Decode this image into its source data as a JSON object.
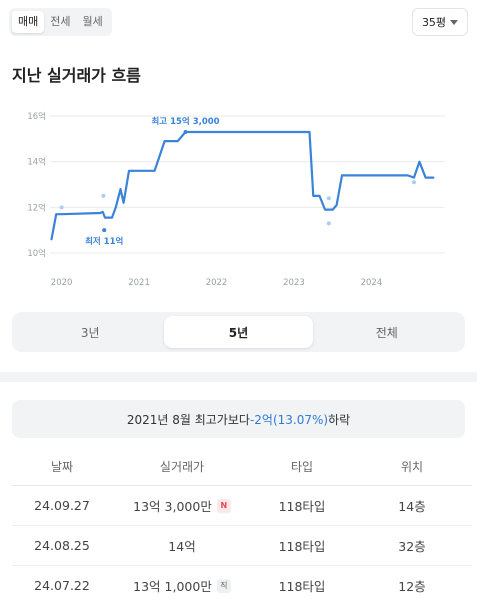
{
  "deal_tabs": [
    {
      "label": "매매",
      "active": true
    },
    {
      "label": "전세",
      "active": false
    },
    {
      "label": "월세",
      "active": false
    }
  ],
  "area_select": {
    "value": "35평",
    "icon": "caret-down-icon"
  },
  "section_title": "지난 실거래가 흐름",
  "chart_data": {
    "type": "line",
    "y_unit": "억",
    "ylim": [
      10,
      16
    ],
    "y_ticks": [
      {
        "value": 16,
        "label": "16억"
      },
      {
        "value": 14,
        "label": "14억"
      },
      {
        "value": 12,
        "label": "12억"
      },
      {
        "value": 10,
        "label": "10억"
      }
    ],
    "x_ticks": [
      {
        "value": 2020,
        "label": "2020"
      },
      {
        "value": 2021,
        "label": "2021"
      },
      {
        "value": 2022,
        "label": "2022"
      },
      {
        "value": 2023,
        "label": "2023"
      },
      {
        "value": 2024,
        "label": "2024"
      }
    ],
    "xlim": [
      2019.85,
      2024.95
    ],
    "grid": true,
    "line_color": "#3b82d9",
    "scatter_color": "#a9cdf4",
    "series": [
      {
        "x": [
          2019.87,
          2019.93,
          2020.0,
          2020.5,
          2020.53,
          2020.56,
          2020.65,
          2020.7,
          2020.76,
          2020.8,
          2020.87,
          2021.0,
          2021.2,
          2021.33,
          2021.5,
          2021.6,
          2023.2,
          2023.25,
          2023.33,
          2023.4,
          2023.5,
          2023.55,
          2023.62,
          2023.72,
          2024.47,
          2024.55,
          2024.62,
          2024.7,
          2024.8
        ],
        "y": [
          10.6,
          11.7,
          11.7,
          11.75,
          11.8,
          11.55,
          11.55,
          12.0,
          12.8,
          12.2,
          13.6,
          13.6,
          13.6,
          14.9,
          14.9,
          15.3,
          15.3,
          12.5,
          12.5,
          11.9,
          11.9,
          12.1,
          13.4,
          13.4,
          13.4,
          13.3,
          14.0,
          13.3,
          13.3
        ]
      }
    ],
    "points": [
      {
        "x": 2020.0,
        "y": 12.0,
        "highlight": false
      },
      {
        "x": 2020.54,
        "y": 12.5,
        "highlight": false
      },
      {
        "x": 2020.55,
        "y": 11.0,
        "highlight": true
      },
      {
        "x": 2021.6,
        "y": 15.3,
        "highlight": true
      },
      {
        "x": 2023.45,
        "y": 12.4,
        "highlight": false
      },
      {
        "x": 2023.45,
        "y": 11.3,
        "highlight": false
      },
      {
        "x": 2024.55,
        "y": 13.1,
        "highlight": false
      }
    ],
    "annotations": [
      {
        "text": "최고 15억 3,000",
        "x": 2021.6,
        "y": 15.3,
        "position": "above"
      },
      {
        "text": "최저 11억",
        "x": 2020.55,
        "y": 11.0,
        "position": "below"
      }
    ]
  },
  "period_tabs": [
    {
      "label": "3년",
      "active": false
    },
    {
      "label": "5년",
      "active": true
    },
    {
      "label": "전체",
      "active": false
    }
  ],
  "summary": {
    "prefix": "2021년 8월 최고가보다 ",
    "highlight": "-2억(13.07%)",
    "suffix": " 하락"
  },
  "table": {
    "headers": [
      "날짜",
      "실거래가",
      "타입",
      "위치"
    ],
    "rows": [
      {
        "date": "24.09.27",
        "price": "13억 3,000만",
        "badge": "N",
        "badge_type": "new",
        "type": "118타입",
        "floor": "14층"
      },
      {
        "date": "24.08.25",
        "price": "14억",
        "badge": "",
        "badge_type": "",
        "type": "118타입",
        "floor": "32층"
      },
      {
        "date": "24.07.22",
        "price": "13억 1,000만",
        "badge": "직",
        "badge_type": "direct",
        "type": "118타입",
        "floor": "12층"
      }
    ]
  }
}
